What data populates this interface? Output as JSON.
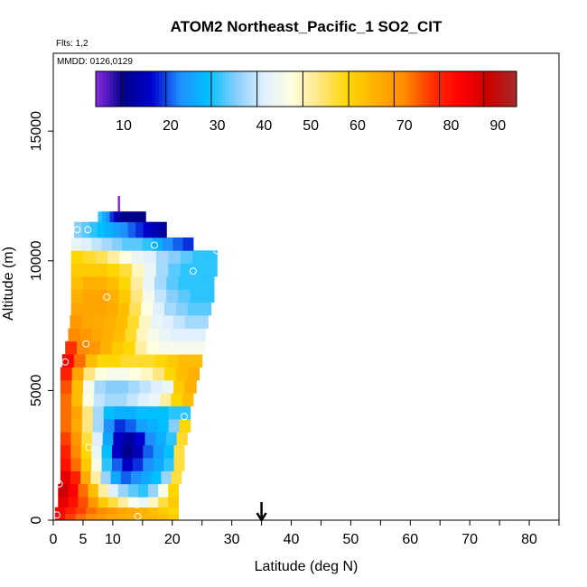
{
  "chart_data": {
    "type": "heatmap",
    "title": "ATOM2 Northeast_Pacific_1 SO2_CIT",
    "flights_note": "Flts: 1,2",
    "date_note": "MMDD: 0126,0129",
    "xlabel": "Latitude (deg N)",
    "ylabel": "Altitude (m)",
    "xlim": [
      0,
      85
    ],
    "ylim": [
      0,
      18000
    ],
    "x_ticks": [
      0,
      5,
      10,
      20,
      30,
      40,
      50,
      60,
      70,
      80
    ],
    "x_tick_labels": [
      "0",
      "5",
      "10",
      "20",
      "30",
      "40",
      "50",
      "60",
      "70",
      "80"
    ],
    "x_minor_ticks": [
      15,
      25,
      35,
      45,
      55,
      65,
      75,
      85
    ],
    "y_ticks": [
      0,
      5000,
      10000,
      15000
    ],
    "y_tick_labels": [
      "0",
      "5000",
      "10000",
      "15000"
    ],
    "colorbar": {
      "range": [
        4,
        94
      ],
      "tick_values": [
        10,
        20,
        30,
        40,
        50,
        60,
        70,
        80,
        90
      ],
      "tick_labels": [
        "10",
        "20",
        "30",
        "40",
        "50",
        "60",
        "70",
        "80",
        "90"
      ],
      "band_edges": [
        4,
        9.5,
        19,
        28.7,
        38.5,
        48.3,
        58.1,
        67.8,
        77.5,
        87,
        94
      ],
      "colors": [
        "#8a2be2",
        "#00008b",
        "#0000cd",
        "#1e90ff",
        "#00bfff",
        "#87cefa",
        "#e0f0ff",
        "#ffffe0",
        "#ffe680",
        "#ffd700",
        "#ffb000",
        "#ff8c00",
        "#ff3000",
        "#ff0000",
        "#cc0000",
        "#a52a2a"
      ]
    },
    "grid": false,
    "marker_arrow_lat": 35,
    "column_boundaries": [
      {
        "lat": 0.3,
        "top": 200
      },
      {
        "lat": 0.8,
        "top": 1200
      },
      {
        "lat": 1.2,
        "top": 5500
      },
      {
        "lat": 2.0,
        "top": 6400
      },
      {
        "lat": 3.0,
        "top": 10600
      },
      {
        "lat": 4.0,
        "top": 11100
      },
      {
        "lat": 6.0,
        "top": 11200
      },
      {
        "lat": 8.0,
        "top": 11700
      },
      {
        "lat": 10.0,
        "top": 11900
      },
      {
        "lat": 13.0,
        "top": 11900
      },
      {
        "lat": 15.0,
        "top": 11900
      },
      {
        "lat": 17.0,
        "top": 11500
      },
      {
        "lat": 19.0,
        "top": 11500
      },
      {
        "lat": 21.0,
        "top": 10900
      },
      {
        "lat": 24.0,
        "top": 10900
      },
      {
        "lat": 27.0,
        "top": 10500
      },
      {
        "lat": 28.0,
        "top": 9500
      }
    ],
    "layers": [
      {
        "y0": 0,
        "y1": 250,
        "lat_end": 21,
        "values": [
          80,
          75,
          72,
          70,
          68,
          66,
          65,
          64,
          63,
          63,
          62,
          60
        ]
      },
      {
        "y0": 250,
        "y1": 500,
        "lat_end": 21,
        "values": [
          82,
          78,
          75,
          72,
          70,
          68,
          66,
          65,
          64,
          62,
          60,
          58
        ]
      },
      {
        "y0": 500,
        "y1": 900,
        "lat_end": 21,
        "values": [
          85,
          80,
          74,
          68,
          60,
          55,
          50,
          45,
          42,
          48,
          55,
          60
        ]
      },
      {
        "y0": 900,
        "y1": 1400,
        "lat_end": 21,
        "values": [
          88,
          82,
          72,
          62,
          50,
          40,
          35,
          32,
          30,
          35,
          45,
          58
        ]
      },
      {
        "y0": 1400,
        "y1": 1900,
        "lat_end": 21.5,
        "values": [
          85,
          78,
          65,
          50,
          35,
          25,
          20,
          22,
          25,
          28,
          35,
          55
        ]
      },
      {
        "y0": 1900,
        "y1": 2400,
        "lat_end": 22,
        "values": [
          80,
          72,
          60,
          45,
          30,
          20,
          15,
          18,
          22,
          25,
          30,
          55
        ]
      },
      {
        "y0": 2400,
        "y1": 2900,
        "lat_end": 22,
        "values": [
          78,
          70,
          58,
          42,
          28,
          15,
          10,
          14,
          20,
          24,
          28,
          55
        ]
      },
      {
        "y0": 2900,
        "y1": 3400,
        "lat_end": 22.5,
        "values": [
          75,
          68,
          55,
          40,
          25,
          15,
          12,
          16,
          22,
          26,
          30,
          56
        ]
      },
      {
        "y0": 3400,
        "y1": 3900,
        "lat_end": 23,
        "values": [
          72,
          65,
          52,
          36,
          22,
          18,
          20,
          24,
          26,
          28,
          34,
          58
        ]
      },
      {
        "y0": 3900,
        "y1": 4400,
        "lat_end": 23,
        "values": [
          72,
          66,
          52,
          36,
          28,
          26,
          26,
          28,
          28,
          28,
          30,
          30
        ]
      },
      {
        "y0": 4400,
        "y1": 4900,
        "lat_end": 23.5,
        "values": [
          72,
          62,
          46,
          38,
          36,
          36,
          38,
          40,
          42,
          50,
          58,
          62
        ]
      },
      {
        "y0": 4900,
        "y1": 5400,
        "lat_end": 24,
        "values": [
          74,
          62,
          44,
          36,
          34,
          34,
          36,
          38,
          40,
          42,
          60,
          64
        ]
      },
      {
        "y0": 5400,
        "y1": 5900,
        "lat_end": 24.5,
        "values": [
          78,
          66,
          52,
          46,
          44,
          44,
          46,
          48,
          52,
          58,
          62,
          64
        ]
      },
      {
        "y0": 5900,
        "y1": 6400,
        "lat_end": 25,
        "values": [
          82,
          72,
          62,
          58,
          58,
          56,
          56,
          56,
          58,
          60,
          62,
          62
        ]
      },
      {
        "y0": 6400,
        "y1": 6900,
        "lat_end": 25.5,
        "values": [
          76,
          70,
          68,
          64,
          60,
          58,
          50,
          46,
          44,
          44,
          44,
          44
        ]
      },
      {
        "y0": 6900,
        "y1": 7400,
        "lat_end": 25.5,
        "values": [
          70,
          68,
          66,
          64,
          62,
          56,
          48,
          44,
          42,
          40,
          40,
          40
        ]
      },
      {
        "y0": 7400,
        "y1": 7900,
        "lat_end": 26,
        "values": [
          68,
          66,
          65,
          64,
          62,
          56,
          48,
          42,
          40,
          38,
          36,
          36
        ]
      },
      {
        "y0": 7900,
        "y1": 8400,
        "lat_end": 26.5,
        "values": [
          66,
          66,
          66,
          65,
          62,
          54,
          46,
          40,
          36,
          34,
          32,
          32
        ]
      },
      {
        "y0": 8400,
        "y1": 8900,
        "lat_end": 27,
        "values": [
          64,
          66,
          66,
          64,
          60,
          52,
          44,
          38,
          34,
          32,
          30,
          30
        ]
      },
      {
        "y0": 8900,
        "y1": 9400,
        "lat_end": 27,
        "values": [
          62,
          64,
          64,
          62,
          58,
          50,
          42,
          36,
          32,
          30,
          30,
          30
        ]
      },
      {
        "y0": 9400,
        "y1": 9900,
        "lat_end": 27.5,
        "values": [
          60,
          60,
          60,
          58,
          55,
          48,
          42,
          36,
          32,
          30,
          30,
          30
        ]
      },
      {
        "y0": 9900,
        "y1": 10400,
        "lat_end": 27.5,
        "values": [
          58,
          56,
          54,
          50,
          46,
          42,
          40,
          36,
          34,
          32,
          30,
          30
        ]
      },
      {
        "y0": 10400,
        "y1": 10900,
        "lat_end": 23.5,
        "values": [
          42,
          40,
          38,
          36,
          34,
          32,
          32,
          30,
          26,
          22,
          20,
          18
        ]
      },
      {
        "y0": 10900,
        "y1": 11500,
        "lat_end": 19,
        "values": [
          34,
          32,
          30,
          28,
          26,
          24,
          22,
          20,
          18,
          16,
          14,
          12
        ]
      },
      {
        "y0": 11500,
        "y1": 11900,
        "lat_end": 15.5,
        "values": [
          30,
          26,
          22,
          18,
          14,
          12,
          10,
          10,
          10,
          10,
          10,
          10
        ]
      }
    ],
    "layer_starts": [
      0.3,
      0.3,
      0.8,
      0.8,
      1.2,
      1.2,
      1.2,
      1.2,
      1.2,
      1.2,
      1.2,
      1.2,
      1.2,
      1.5,
      2.0,
      2.5,
      2.8,
      3.0,
      3.0,
      3.0,
      3.0,
      3.0,
      3.0,
      3.5,
      7.5
    ],
    "spike": {
      "lat": 11,
      "y0": 11900,
      "y1": 12500,
      "value": 4
    },
    "sample_points": [
      {
        "lat": 0.6,
        "alt": 200
      },
      {
        "lat": 1.0,
        "alt": 1400
      },
      {
        "lat": 14.2,
        "alt": 150
      },
      {
        "lat": 14.0,
        "alt": 600
      },
      {
        "lat": 6.0,
        "alt": 2800
      },
      {
        "lat": 22.0,
        "alt": 4000
      },
      {
        "lat": 2.0,
        "alt": 6100
      },
      {
        "lat": 5.5,
        "alt": 6800
      },
      {
        "lat": 9.0,
        "alt": 8600
      },
      {
        "lat": 23.5,
        "alt": 9600
      },
      {
        "lat": 17.0,
        "alt": 10600
      },
      {
        "lat": 27.5,
        "alt": 10400
      },
      {
        "lat": 4.0,
        "alt": 11200
      },
      {
        "lat": 5.8,
        "alt": 11200
      }
    ]
  }
}
